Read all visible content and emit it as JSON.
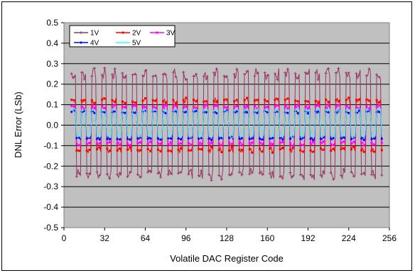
{
  "chart_data": {
    "type": "line",
    "title": "",
    "xlabel": "Volatile DAC Register Code",
    "ylabel": "DNL Error (LSb)",
    "xlim": [
      0,
      256
    ],
    "ylim": [
      -0.5,
      0.5
    ],
    "x_ticks": [
      "0",
      "32",
      "64",
      "96",
      "128",
      "160",
      "192",
      "224",
      "256"
    ],
    "y_ticks": [
      "0.5",
      "0.4",
      "0.3",
      "0.2",
      "0.1",
      "0.0",
      "-0.1",
      "-0.2",
      "-0.3",
      "-0.4",
      "-0.5"
    ],
    "grid": true,
    "legend_position": "top-left",
    "x_start": 6,
    "x_end": 250,
    "oscillation_period_codes": 8,
    "series": [
      {
        "name": "1V",
        "color": "#993366",
        "marker": "plus",
        "high": 0.25,
        "low": -0.24
      },
      {
        "name": "2V",
        "color": "#FF0000",
        "marker": "square",
        "high": 0.12,
        "low": -0.12
      },
      {
        "name": "3V",
        "color": "#FF00FF",
        "marker": "square",
        "high": 0.09,
        "low": -0.09
      },
      {
        "name": "4V",
        "color": "#0000FF",
        "marker": "diamond",
        "high": 0.065,
        "low": -0.065
      },
      {
        "name": "5V",
        "color": "#33FFFF",
        "marker": "none",
        "high": 0.075,
        "low": -0.055
      }
    ]
  }
}
